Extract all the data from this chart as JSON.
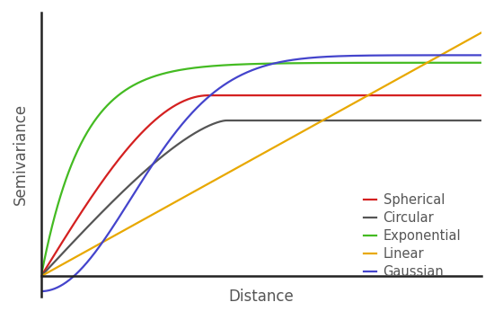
{
  "xlabel": "Distance",
  "ylabel": "Semivariance",
  "xlim": [
    0,
    1.0
  ],
  "ylim": [
    -0.08,
    1.05
  ],
  "sill_spherical": 0.72,
  "range_spherical": 0.38,
  "sill_circular": 0.62,
  "range_circular": 0.42,
  "sill_exponential": 0.85,
  "range_exponential": 0.28,
  "linear_slope": 0.97,
  "sill_gaussian": 0.88,
  "range_gaussian": 0.5,
  "gaussian_nugget": -0.06,
  "background_color": "#ffffff",
  "colors": {
    "spherical": "#d42020",
    "circular": "#555555",
    "exponential": "#44bb22",
    "linear": "#e8a800",
    "gaussian": "#4444cc"
  },
  "legend_labels": [
    "Spherical",
    "Circular",
    "Exponential",
    "Linear",
    "Gaussian"
  ],
  "legend_colors": [
    "#d42020",
    "#555555",
    "#44bb22",
    "#e8a800",
    "#4444cc"
  ],
  "linewidth": 1.6,
  "xlabel_fontsize": 12,
  "ylabel_fontsize": 12,
  "legend_fontsize": 10.5,
  "spine_color": "#222222",
  "text_color": "#555555"
}
